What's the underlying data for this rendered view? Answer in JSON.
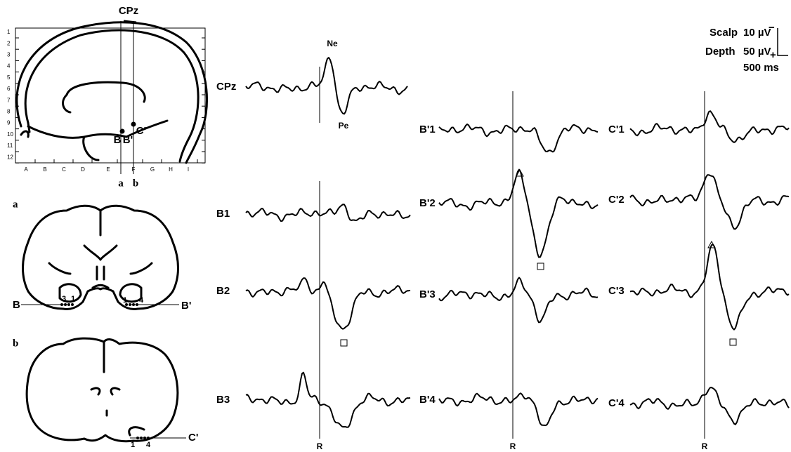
{
  "sagittal": {
    "electrode": "CPz",
    "rows": [
      "1",
      "2",
      "3",
      "4",
      "5",
      "6",
      "7",
      "8",
      "9",
      "10",
      "11",
      "12"
    ],
    "columns": [
      "A",
      "B",
      "C",
      "D",
      "E",
      "F",
      "G",
      "H",
      "I"
    ],
    "planes": [
      "a",
      "b"
    ],
    "contacts": [
      "B",
      "B'",
      "C'"
    ]
  },
  "coronal": [
    {
      "label": "a",
      "left": "B",
      "right": "B'",
      "left_contacts": [
        "3",
        "1"
      ],
      "right_contacts": [
        "1",
        "4"
      ]
    },
    {
      "label": "b",
      "right": "C'",
      "right_contacts": [
        "1",
        "4"
      ]
    }
  ],
  "traces": {
    "scalp": {
      "label": "CPz",
      "peaks": [
        "Ne",
        "Pe"
      ]
    },
    "columns": [
      {
        "labels": [
          "B1",
          "B2",
          "B3"
        ],
        "marker": "R"
      },
      {
        "labels": [
          "B'1",
          "B'2",
          "B'3",
          "B'4"
        ],
        "marker": "R"
      },
      {
        "labels": [
          "C'1",
          "C'2",
          "C'3",
          "C'4"
        ],
        "marker": "R"
      }
    ]
  },
  "scale": {
    "rows": [
      {
        "label": "Scalp",
        "value": "10 µV",
        "sign": "−"
      },
      {
        "label": "Depth",
        "value": "50 µV",
        "sign": "+"
      }
    ],
    "time": "500 ms"
  }
}
